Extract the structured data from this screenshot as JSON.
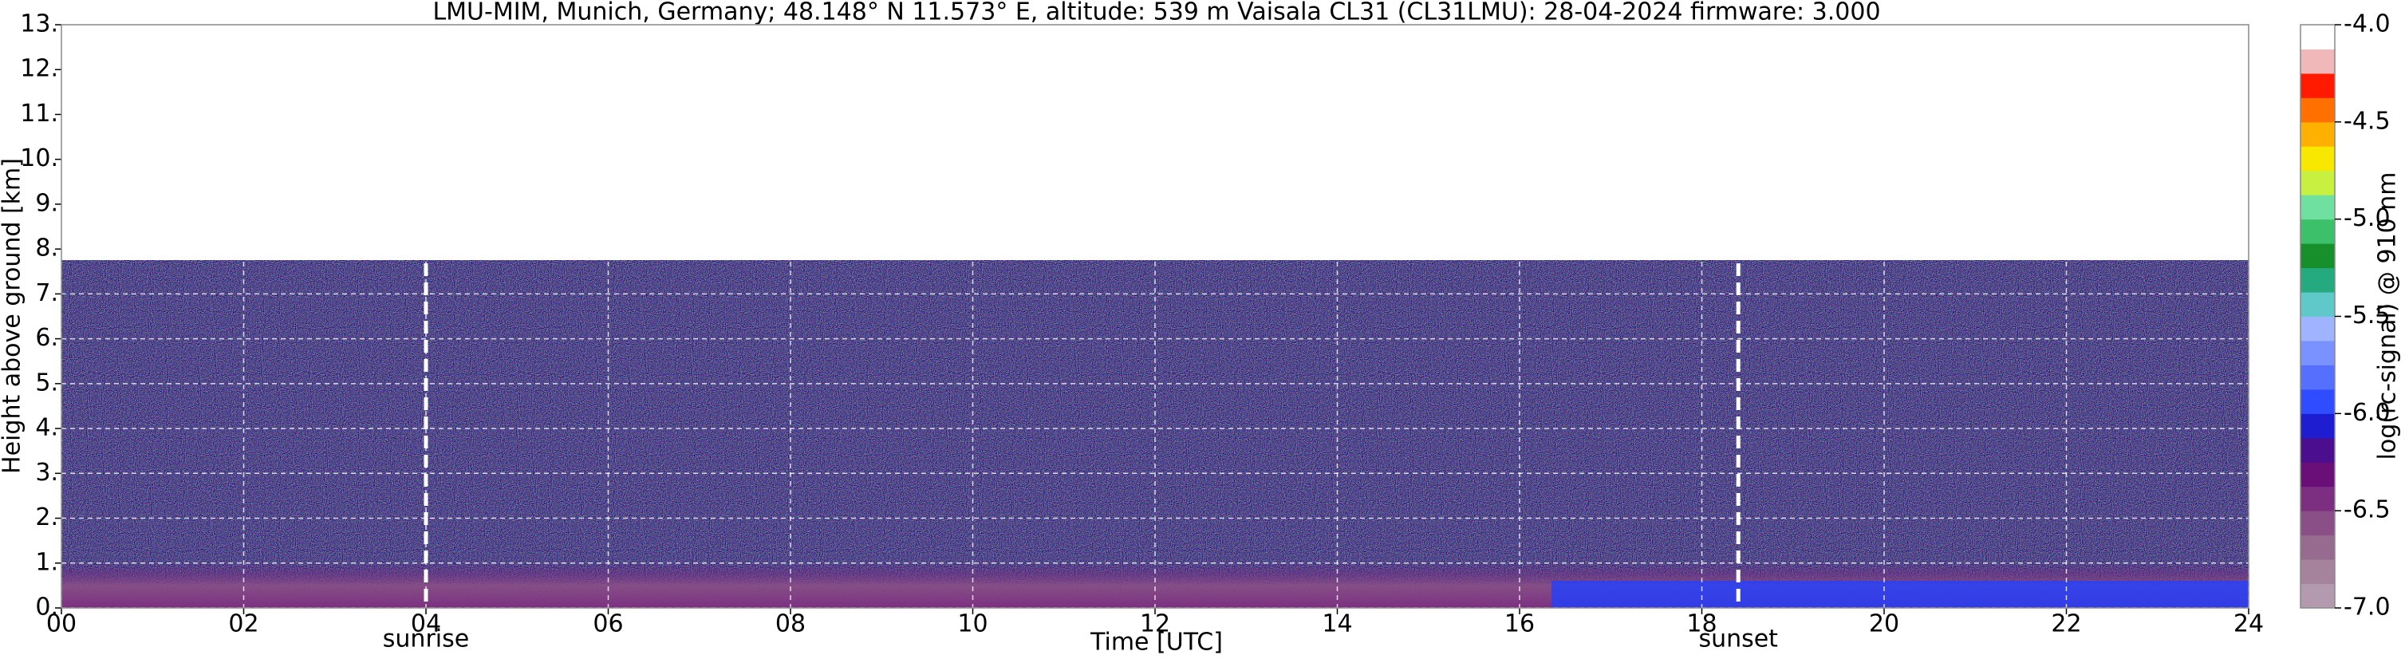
{
  "chart_data": {
    "type": "heatmap",
    "title": "LMU-MIM, Munich, Germany; 48.148° N 11.573° E, altitude: 539 m    Vaisala CL31 (CL31LMU): 28-04-2024    firmware: 3.000",
    "x_label": "Time [UTC]",
    "y_label": "Height above ground [km]",
    "xlim": [
      0,
      24
    ],
    "ylim": [
      0,
      13
    ],
    "xticks": [
      {
        "value": 0,
        "label": "00"
      },
      {
        "value": 2,
        "label": "02"
      },
      {
        "value": 4,
        "label": "04"
      },
      {
        "value": 6,
        "label": "06"
      },
      {
        "value": 8,
        "label": "08"
      },
      10,
      12,
      14,
      16,
      18,
      20,
      22,
      24
    ],
    "yticks": [
      {
        "value": 0,
        "label": "0."
      },
      {
        "value": 1,
        "label": "1."
      },
      {
        "value": 2,
        "label": "2."
      },
      {
        "value": 3,
        "label": "3."
      },
      {
        "value": 4,
        "label": "4."
      },
      {
        "value": 5,
        "label": "5."
      },
      {
        "value": 6,
        "label": "6."
      },
      {
        "value": 7,
        "label": "7."
      },
      {
        "value": 8,
        "label": "8."
      },
      {
        "value": 9,
        "label": "9."
      },
      {
        "value": 10,
        "label": "10."
      },
      {
        "value": 11,
        "label": "11."
      },
      {
        "value": 12,
        "label": "12."
      },
      {
        "value": 13,
        "label": "13."
      }
    ],
    "grid": true,
    "annotations": [
      {
        "x": 4.0,
        "label": "sunrise"
      },
      {
        "x": 18.4,
        "label": "sunset"
      }
    ],
    "colorbar": {
      "label": "log(rc-signal) @ 910 nm",
      "clim": [
        -7.0,
        -4.0
      ],
      "ticks": [
        {
          "value": -7,
          "label": "-7.0"
        },
        {
          "value": -6.5,
          "label": "-6.5"
        },
        {
          "value": -6,
          "label": "-6.0"
        },
        {
          "value": -5.5,
          "label": "-5.5"
        },
        {
          "value": -5,
          "label": "-5.0"
        },
        {
          "value": -4.5,
          "label": "-4.5"
        },
        {
          "value": -4,
          "label": "-4.0"
        }
      ],
      "colors": [
        "#b39aae",
        "#a5839d",
        "#976a90",
        "#8a4f86",
        "#7c2f80",
        "#6b0f78",
        "#4b0e8f",
        "#1e1ed0",
        "#2f4cff",
        "#5570ff",
        "#7a92ff",
        "#9fb3ff",
        "#5fc8c8",
        "#25aa80",
        "#17902c",
        "#3cc06a",
        "#70e0a0",
        "#c8f040",
        "#f8e800",
        "#ffb000",
        "#ff7000",
        "#ff1a00",
        "#f0b8b8",
        "#ffffff"
      ]
    }
  }
}
